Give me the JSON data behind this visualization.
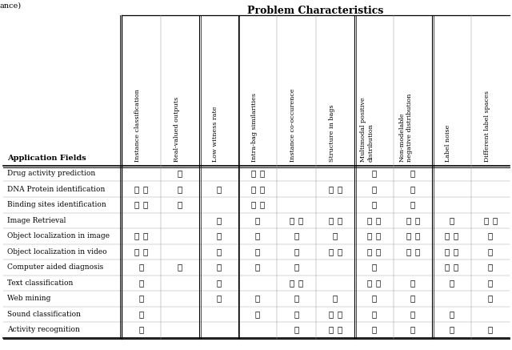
{
  "title": "Problem Characteristics",
  "col_header_label": "Application Fields",
  "columns": [
    "Instance classification",
    "Real-valued outputs",
    "Low witness rate",
    "Intra-bag similarities",
    "Instance co-occurence",
    "Structure in bags",
    "Multimodal positive\ndistribution",
    "Non-modelable\nnegative distribution",
    "Label noise",
    "Different label spaces"
  ],
  "rows": [
    "Drug activity prediction",
    "DNA Protein identification",
    "Binding sites identification",
    "Image Retrieval",
    "Object localization in image",
    "Object localization in video",
    "Computer aided diagnosis",
    "Text classification",
    "Web mining",
    "Sound classification",
    "Activity recognition"
  ],
  "data": [
    [
      0,
      1,
      0,
      2,
      0,
      0,
      1,
      1,
      0,
      0
    ],
    [
      2,
      1,
      1,
      2,
      0,
      2,
      1,
      1,
      0,
      0
    ],
    [
      2,
      1,
      0,
      2,
      0,
      0,
      1,
      1,
      0,
      0
    ],
    [
      0,
      0,
      1,
      1,
      2,
      2,
      2,
      2,
      1,
      2
    ],
    [
      2,
      0,
      1,
      1,
      1,
      1,
      2,
      2,
      2,
      1
    ],
    [
      2,
      0,
      1,
      1,
      1,
      2,
      2,
      2,
      2,
      1
    ],
    [
      1,
      1,
      1,
      1,
      1,
      0,
      1,
      0,
      2,
      1
    ],
    [
      1,
      0,
      1,
      0,
      2,
      0,
      2,
      1,
      1,
      1
    ],
    [
      1,
      0,
      1,
      1,
      1,
      1,
      1,
      1,
      0,
      1
    ],
    [
      1,
      0,
      0,
      1,
      1,
      2,
      1,
      1,
      1,
      0
    ],
    [
      1,
      0,
      0,
      0,
      1,
      2,
      1,
      1,
      1,
      1
    ]
  ],
  "double_line_after_cols": [
    1,
    2,
    5,
    7
  ],
  "background_color": "#ffffff",
  "text_color": "#000000",
  "left_label": "ance)",
  "fig_width": 6.4,
  "fig_height": 4.37,
  "dpi": 100
}
